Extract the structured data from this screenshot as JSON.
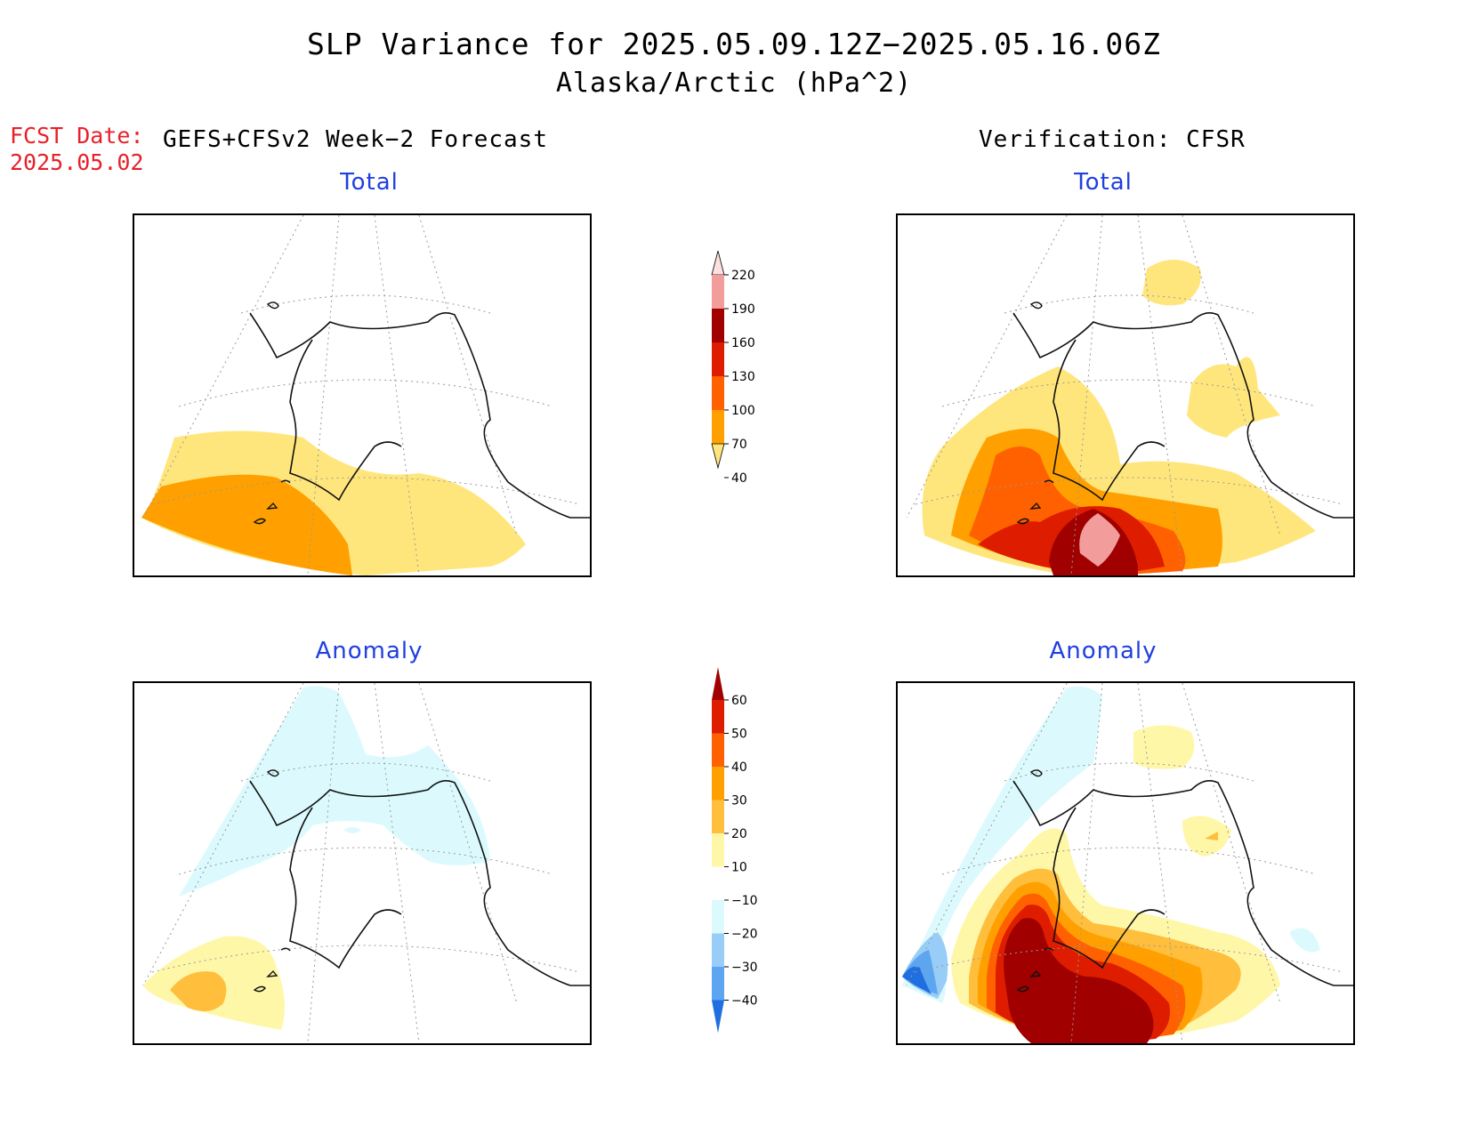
{
  "title": "SLP Variance for 2025.05.09.12Z−2025.05.16.06Z",
  "subtitle": "Alaska/Arctic (hPa^2)",
  "fcst_label": "FCST Date:",
  "fcst_date": "2025.05.02",
  "left_header": "GEFS+CFSv2 Week−2 Forecast",
  "right_header": "Verification: CFSR",
  "panels": {
    "forecast_total_title": "Total",
    "verification_total_title": "Total",
    "forecast_anomaly_title": "Anomaly",
    "verification_anomaly_title": "Anomaly"
  },
  "colorbars": {
    "total": {
      "ticks": [
        "220",
        "190",
        "160",
        "130",
        "100",
        "70",
        "40"
      ],
      "colors": [
        "#fde0df",
        "#f29c9c",
        "#a00000",
        "#dd1c00",
        "#ff6000",
        "#ffa000",
        "#ffe67c"
      ]
    },
    "anomaly": {
      "ticks": [
        "60",
        "50",
        "40",
        "30",
        "20",
        "10",
        "−10",
        "−20",
        "−30",
        "−40"
      ],
      "colors": [
        "#a00000",
        "#dd1c00",
        "#ff6000",
        "#ffa000",
        "#ffbe3c",
        "#fff7a8",
        "#ffffff",
        "#dcfafd",
        "#98cdf7",
        "#5ca5f0",
        "#1f6fe0"
      ]
    }
  },
  "chart_data": {
    "type": "map",
    "region": "Alaska/Arctic",
    "variable": "SLP Variance",
    "units": "hPa^2",
    "panels": [
      {
        "name": "GEFS+CFSv2 Week−2 Forecast Total",
        "contour_levels": [
          40,
          70,
          100,
          130,
          160,
          190,
          220
        ],
        "max_band": "70-100"
      },
      {
        "name": "Verification: CFSR Total",
        "contour_levels": [
          40,
          70,
          100,
          130,
          160,
          190,
          220
        ],
        "max_band": "190-220"
      },
      {
        "name": "GEFS+CFSv2 Week−2 Forecast Anomaly",
        "contour_levels": [
          -40,
          -30,
          -20,
          -10,
          10,
          20,
          30,
          40,
          50,
          60
        ],
        "max_band": "20-30",
        "min_band": "-20 to -10"
      },
      {
        "name": "Verification: CFSR Anomaly",
        "contour_levels": [
          -40,
          -30,
          -20,
          -10,
          10,
          20,
          30,
          40,
          50,
          60
        ],
        "max_band": ">60",
        "min_band": "<-40"
      }
    ]
  }
}
